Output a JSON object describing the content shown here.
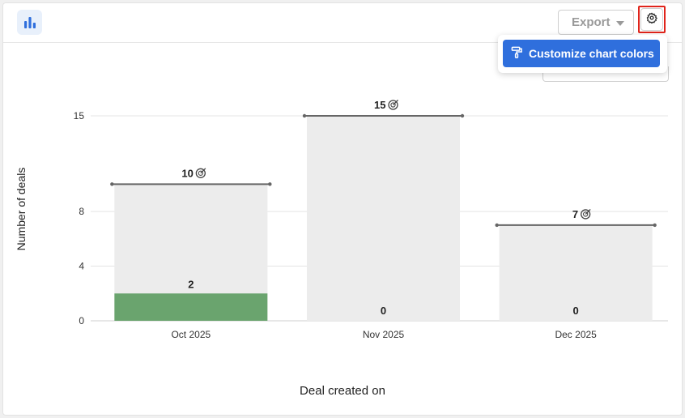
{
  "toolbar": {
    "chart_type_icon": "bar-chart-icon",
    "export_label": "Export",
    "settings_icon": "gear-icon"
  },
  "dropdown": {
    "item_label": "Customize chart colors",
    "item_icon": "paint-roller-icon"
  },
  "colors": {
    "accent": "#2f6fdd",
    "bar_background": "#ececec",
    "bar_value": "#6aa46e",
    "goal_line": "#666666",
    "highlight_border": "#e0241b"
  },
  "chart_data": {
    "type": "bar",
    "xlabel": "Deal created on",
    "ylabel": "Number of deals",
    "ylim": [
      0,
      15
    ],
    "yticks": [
      0,
      4,
      8,
      15
    ],
    "categories": [
      "Oct 2025",
      "Nov 2025",
      "Dec 2025"
    ],
    "series": [
      {
        "values": [
          2,
          0,
          0
        ]
      }
    ],
    "goals": [
      10,
      15,
      7
    ],
    "goal_icon": "target-icon",
    "grid": true
  }
}
